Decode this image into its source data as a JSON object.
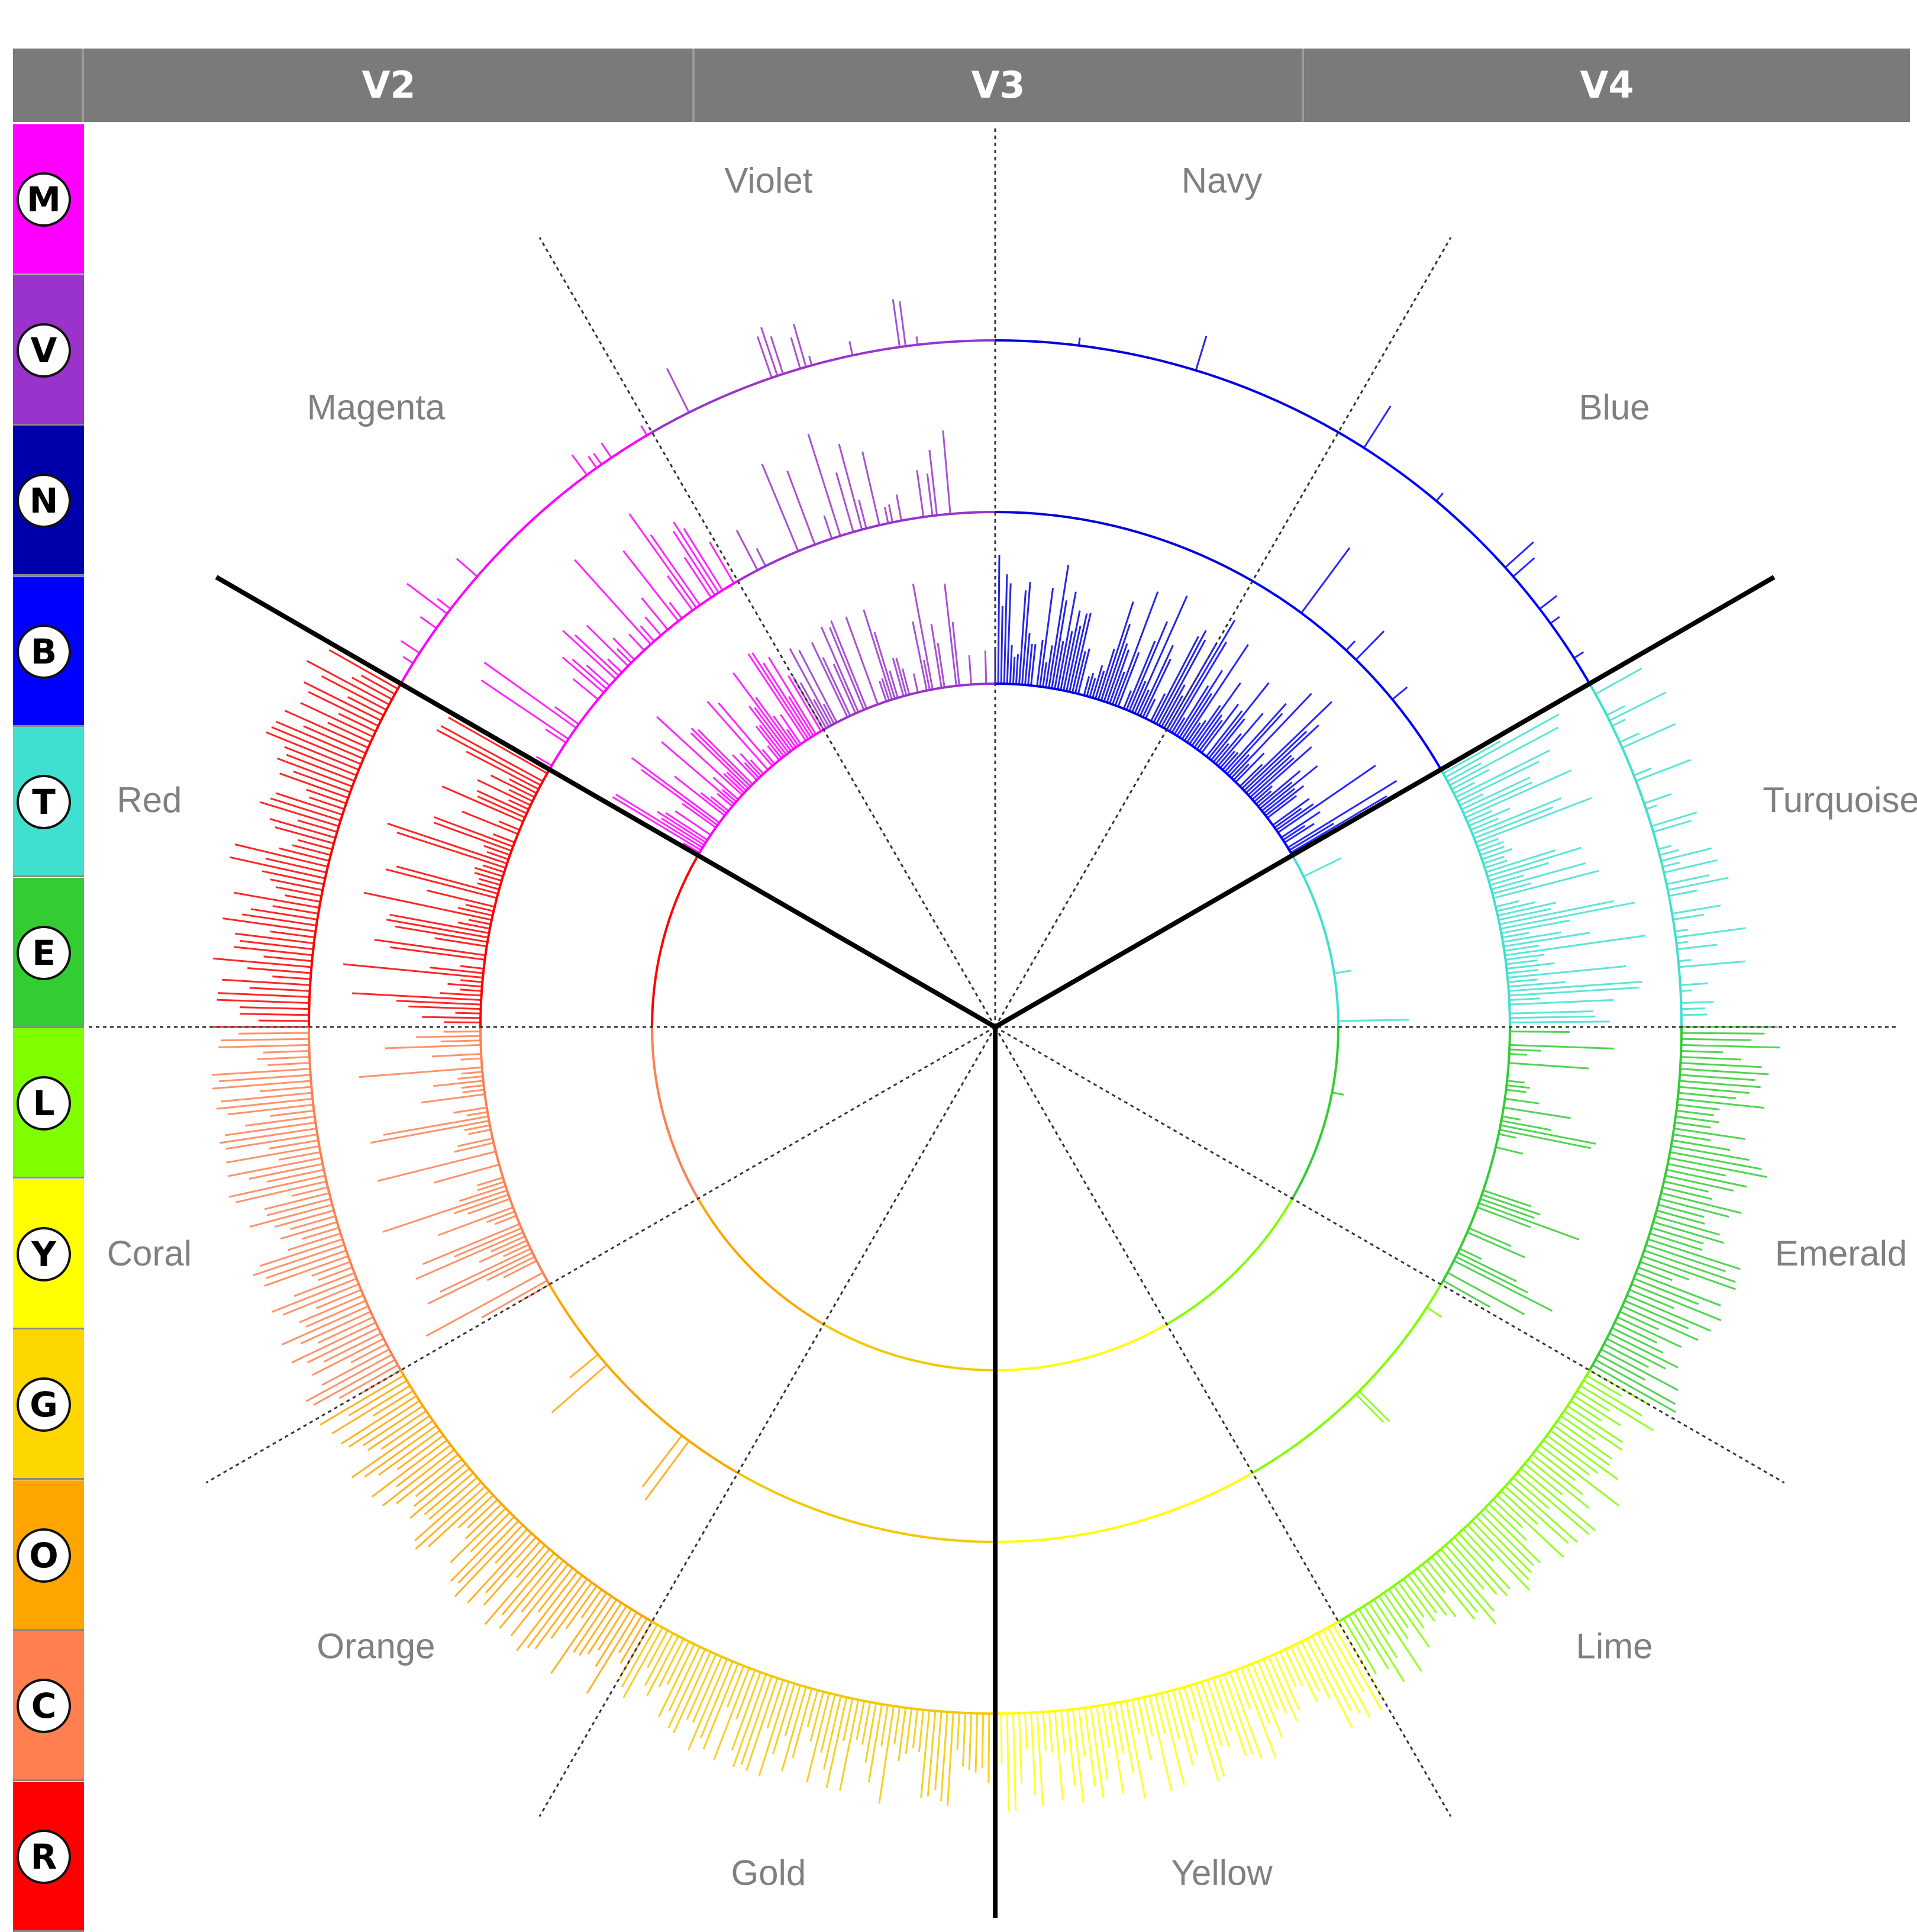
{
  "header": {
    "columns": [
      "V2",
      "V3",
      "V4"
    ]
  },
  "legend": [
    {
      "letter": "M",
      "name": "Magenta",
      "color": "#ff00ff"
    },
    {
      "letter": "V",
      "name": "Violet",
      "color": "#9933cc"
    },
    {
      "letter": "N",
      "name": "Navy",
      "color": "#0000aa"
    },
    {
      "letter": "B",
      "name": "Blue",
      "color": "#0000ff"
    },
    {
      "letter": "T",
      "name": "Turquoise",
      "color": "#40e0d0"
    },
    {
      "letter": "E",
      "name": "Emerald",
      "color": "#33cc33"
    },
    {
      "letter": "L",
      "name": "Lime",
      "color": "#80ff00"
    },
    {
      "letter": "Y",
      "name": "Yellow",
      "color": "#ffff00"
    },
    {
      "letter": "G",
      "name": "Gold",
      "color": "#ffd700"
    },
    {
      "letter": "O",
      "name": "Orange",
      "color": "#ffa500"
    },
    {
      "letter": "C",
      "name": "Coral",
      "color": "#ff7f50"
    },
    {
      "letter": "R",
      "name": "Red",
      "color": "#ff0000"
    }
  ],
  "chart_data": {
    "type": "radial-bar",
    "rings": [
      "V2",
      "V3",
      "V4"
    ],
    "sectors": [
      {
        "name": "Navy",
        "start_deg": 0,
        "end_deg": 30,
        "color": "#0000dd"
      },
      {
        "name": "Blue",
        "start_deg": 30,
        "end_deg": 60,
        "color": "#0000ff"
      },
      {
        "name": "Turquoise",
        "start_deg": 60,
        "end_deg": 90,
        "color": "#40e0d0"
      },
      {
        "name": "Emerald",
        "start_deg": 90,
        "end_deg": 120,
        "color": "#33cc33"
      },
      {
        "name": "Lime",
        "start_deg": 120,
        "end_deg": 150,
        "color": "#80ff00"
      },
      {
        "name": "Yellow",
        "start_deg": 150,
        "end_deg": 180,
        "color": "#ffff00"
      },
      {
        "name": "Gold",
        "start_deg": 180,
        "end_deg": 210,
        "color": "#f2c800"
      },
      {
        "name": "Orange",
        "start_deg": 210,
        "end_deg": 240,
        "color": "#ffa500"
      },
      {
        "name": "Coral",
        "start_deg": 240,
        "end_deg": 270,
        "color": "#ff7f50"
      },
      {
        "name": "Red",
        "start_deg": 270,
        "end_deg": 300,
        "color": "#ff0000"
      },
      {
        "name": "Magenta",
        "start_deg": 300,
        "end_deg": 330,
        "color": "#ff00ff"
      },
      {
        "name": "Violet",
        "start_deg": 330,
        "end_deg": 360,
        "color": "#9933cc"
      }
    ],
    "region_boundaries_deg": [
      60,
      180,
      300
    ],
    "ring_region_map": {
      "V2": "angles 300-60",
      "V3": "angles 60-180",
      "V4": "angles 180-300"
    },
    "bar_density_by_ring_and_sector": {
      "V2": {
        "Navy": 0.9,
        "Blue": 0.9,
        "Turquoise": 0.05,
        "Emerald": 0.02,
        "Lime": 0.01,
        "Yellow": 0.0,
        "Gold": 0.0,
        "Orange": 0.0,
        "Coral": 0.0,
        "Red": 0.0,
        "Magenta": 0.8,
        "Violet": 0.6
      },
      "V3": {
        "Navy": 0.05,
        "Blue": 0.1,
        "Turquoise": 0.9,
        "Emerald": 0.5,
        "Lime": 0.05,
        "Yellow": 0.0,
        "Gold": 0.0,
        "Orange": 0.05,
        "Coral": 0.8,
        "Red": 0.9,
        "Magenta": 0.5,
        "Violet": 0.4
      },
      "V4": {
        "Navy": 0.02,
        "Blue": 0.1,
        "Turquoise": 0.5,
        "Emerald": 1.0,
        "Lime": 1.0,
        "Yellow": 1.0,
        "Gold": 1.0,
        "Orange": 1.0,
        "Coral": 1.0,
        "Red": 1.0,
        "Magenta": 0.3,
        "Violet": 0.1
      }
    },
    "grid": true,
    "legend": "left"
  }
}
